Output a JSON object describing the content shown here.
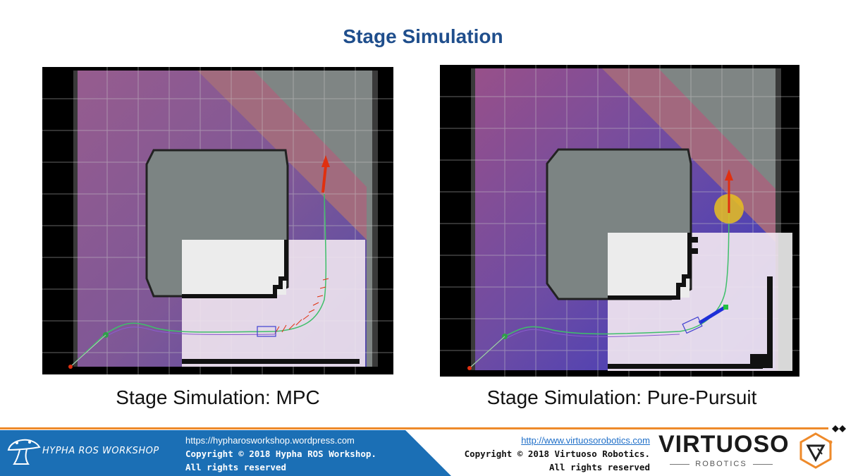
{
  "slide": {
    "title": "Stage Simulation"
  },
  "panels": [
    {
      "caption": "Stage Simulation: MPC"
    },
    {
      "caption": "Stage Simulation: Pure-Pursuit"
    }
  ],
  "footer": {
    "hypha_brand": "HYPHA ROS WORKSHOP",
    "hypha_url": "https://hypharosworkshop.wordpress.com",
    "hypha_copyright": "Copyright © 2018 Hypha ROS Workshop.",
    "hypha_rights": "All rights reserved",
    "virtuoso_url": "http://www.virtuosorobotics.com",
    "virtuoso_copyright": "Copyright © 2018 Virtuoso Robotics.",
    "virtuoso_rights": "All rights reserved",
    "virtuoso_logo_main": "VIRTUOSO",
    "virtuoso_logo_sub": "ROBOTICS"
  },
  "colors": {
    "title": "#1f4e8c",
    "footer_blue": "#1b6fb5",
    "footer_orange": "#ee8a2a",
    "path_green": "#3fbf6a",
    "arrow_red": "#e03010",
    "lookahead_yellow": "#e8c020"
  }
}
